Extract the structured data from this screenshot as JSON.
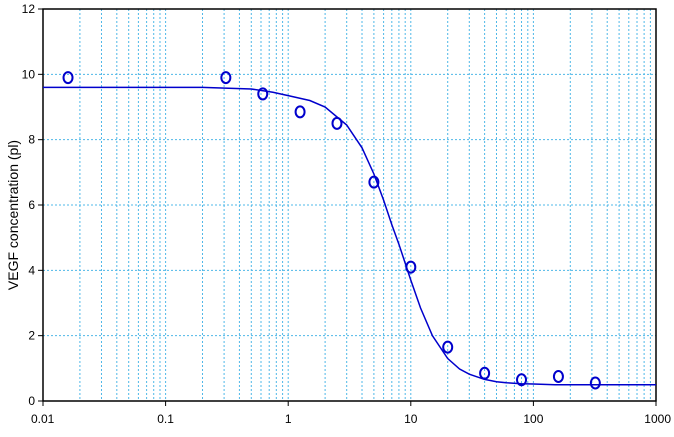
{
  "chart_data": {
    "type": "scatter",
    "title": "",
    "xlabel": "",
    "ylabel": "VEGF concentration (pl)",
    "x_scale": "log",
    "xlim": [
      0.01,
      1000
    ],
    "ylim": [
      0,
      12
    ],
    "grid": true,
    "legend": "none",
    "x_ticks": [
      "0.01",
      "0.1",
      "1",
      "10",
      "100",
      "1000"
    ],
    "x_tick_values": [
      0.01,
      0.1,
      1,
      10,
      100,
      1000
    ],
    "y_ticks": [
      "0",
      "2",
      "4",
      "6",
      "8",
      "10",
      "12"
    ],
    "y_tick_values": [
      0,
      2,
      4,
      6,
      8,
      10,
      12
    ],
    "series": [
      {
        "kind": "points",
        "marker": "open-circle",
        "x": [
          0.016,
          0.31,
          0.62,
          1.25,
          2.5,
          5,
          10,
          20,
          40,
          80,
          160,
          320
        ],
        "y": [
          9.9,
          9.9,
          9.4,
          8.85,
          8.5,
          6.7,
          4.1,
          1.65,
          0.85,
          0.65,
          0.75,
          0.55
        ]
      },
      {
        "kind": "fit-line",
        "x": [
          0.01,
          0.02,
          0.05,
          0.1,
          0.2,
          0.5,
          0.75,
          1,
          1.5,
          2,
          3,
          4,
          5,
          6,
          7,
          8,
          10,
          12,
          15,
          20,
          25,
          30,
          40,
          50,
          60,
          80,
          100,
          150,
          200,
          300,
          500,
          1000
        ],
        "y": [
          9.6,
          9.6,
          9.6,
          9.6,
          9.6,
          9.55,
          9.45,
          9.35,
          9.2,
          9.0,
          8.45,
          7.75,
          6.95,
          6.15,
          5.4,
          4.8,
          3.7,
          2.85,
          2.0,
          1.3,
          0.98,
          0.82,
          0.66,
          0.59,
          0.56,
          0.53,
          0.52,
          0.5,
          0.5,
          0.5,
          0.5,
          0.5
        ]
      }
    ],
    "colors": {
      "data": "#0000cc",
      "grid": "#4fb8e8",
      "axis": "#000000"
    }
  }
}
